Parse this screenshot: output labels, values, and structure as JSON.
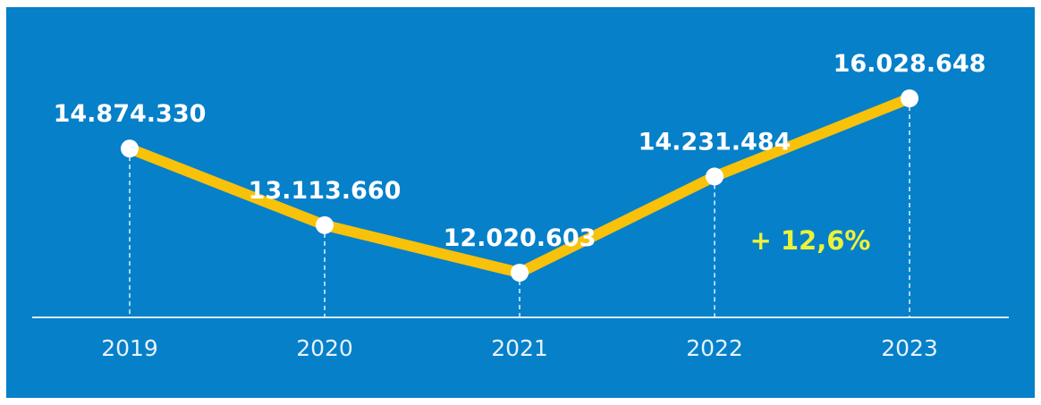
{
  "chart_data": {
    "type": "line",
    "title": "",
    "xlabel": "",
    "ylabel": "",
    "categories": [
      "2019",
      "2020",
      "2021",
      "2022",
      "2023"
    ],
    "series": [
      {
        "values": [
          14874330,
          13113660,
          12020603,
          14231484,
          16028648
        ],
        "value_labels": [
          "14.874.330",
          "13.113.660",
          "12.020.603",
          "14.231.484",
          "16.028.648"
        ]
      }
    ],
    "annotation": "+ 12,6%",
    "grid": false,
    "legend": "none",
    "colors": {
      "background": "#0680c9",
      "line": "#f8c10a",
      "marker": "#ffffff",
      "axis": "#d9ecf8",
      "annotation": "#ecf23a"
    }
  }
}
